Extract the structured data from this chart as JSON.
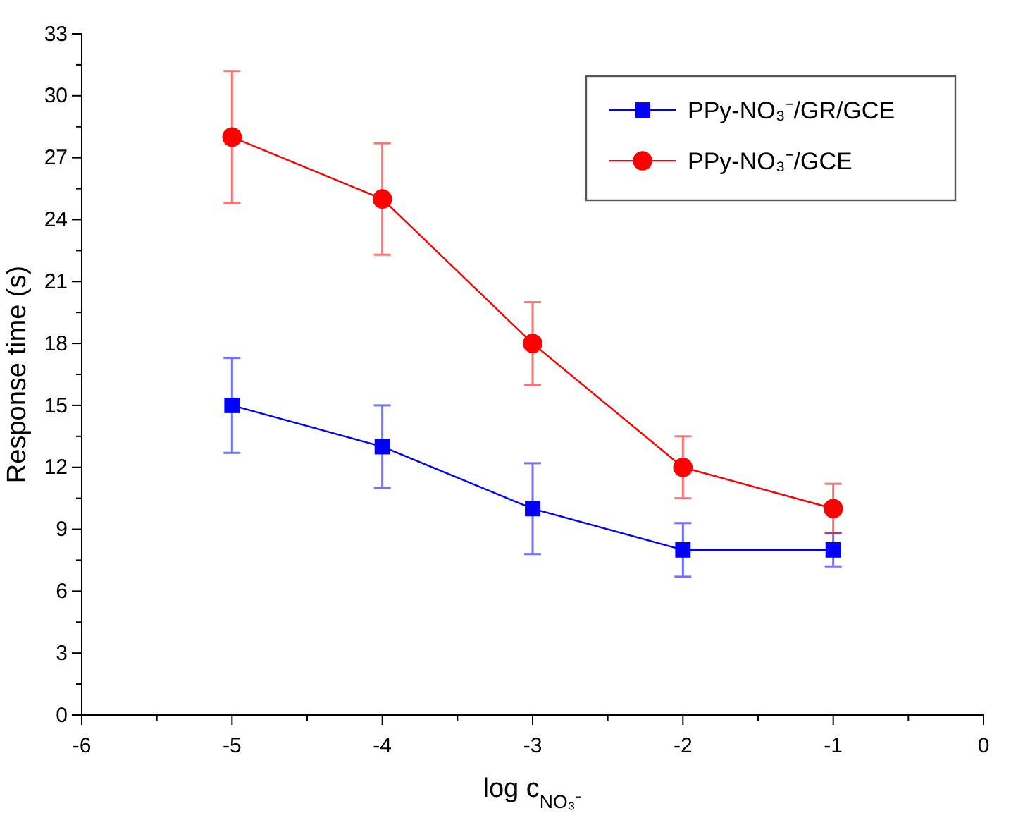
{
  "chart_data": {
    "type": "line",
    "xlabel": "log c$_{NO₃⁻}$",
    "ylabel": "Response time (s)",
    "x": [
      -5,
      -4,
      -3,
      -2,
      -1
    ],
    "xlim": [
      -6,
      0
    ],
    "xticks": [
      -6,
      -5,
      -4,
      -3,
      -2,
      -1,
      0
    ],
    "ylim": [
      0,
      33
    ],
    "yticks": [
      0,
      3,
      6,
      9,
      12,
      15,
      18,
      21,
      24,
      27,
      30,
      33
    ],
    "legend": "top right",
    "grid": false,
    "line_style": "solid",
    "series": [
      {
        "name": "PPy-NO₃⁻/GR/GCE",
        "color": "#0000ff",
        "marker": "square",
        "values": [
          15,
          13,
          10,
          8,
          8
        ],
        "errors": [
          2.3,
          2,
          2.2,
          1.3,
          0.8
        ]
      },
      {
        "name": "PPy-NO₃⁻/GCE",
        "color": "#ff0000",
        "marker": "circle",
        "values": [
          28,
          25,
          18,
          12,
          10
        ],
        "errors": [
          3.2,
          2.7,
          2,
          1.5,
          1.2
        ]
      }
    ]
  }
}
